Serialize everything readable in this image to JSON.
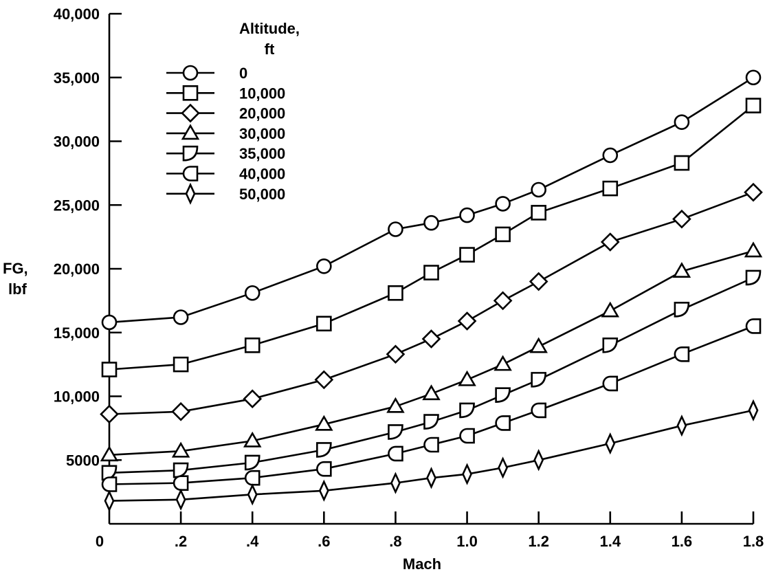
{
  "chart_data": {
    "type": "line",
    "xlabel": "Mach",
    "ylabel_lines": [
      "FG,",
      "lbf"
    ],
    "xlim": [
      0,
      1.8
    ],
    "ylim": [
      0,
      40000
    ],
    "x_ticks": [
      {
        "value": 0,
        "label": "0"
      },
      {
        "value": 0.2,
        "label": ".2"
      },
      {
        "value": 0.4,
        "label": ".4"
      },
      {
        "value": 0.6,
        "label": ".6"
      },
      {
        "value": 0.8,
        "label": ".8"
      },
      {
        "value": 1.0,
        "label": "1.0"
      },
      {
        "value": 1.2,
        "label": "1.2"
      },
      {
        "value": 1.4,
        "label": "1.4"
      },
      {
        "value": 1.6,
        "label": "1.6"
      },
      {
        "value": 1.8,
        "label": "1.8"
      }
    ],
    "y_ticks": [
      {
        "value": 5000,
        "label": "5000"
      },
      {
        "value": 10000,
        "label": "10,000"
      },
      {
        "value": 15000,
        "label": "15,000"
      },
      {
        "value": 20000,
        "label": "20,000"
      },
      {
        "value": 25000,
        "label": "25,000"
      },
      {
        "value": 30000,
        "label": "30,000"
      },
      {
        "value": 35000,
        "label": "35,000"
      },
      {
        "value": 40000,
        "label": "40,000"
      }
    ],
    "legend_title_lines": [
      "Altitude,",
      "ft"
    ],
    "legend_position": "top-left",
    "grid": false,
    "x": [
      0,
      0.2,
      0.4,
      0.6,
      0.8,
      0.9,
      1.0,
      1.1,
      1.2,
      1.4,
      1.6,
      1.8
    ],
    "series": [
      {
        "name": "0",
        "marker": "circle",
        "values": [
          15800,
          16200,
          18100,
          20200,
          23100,
          23600,
          24200,
          25100,
          26200,
          28900,
          31500,
          35000
        ]
      },
      {
        "name": "10,000",
        "marker": "square",
        "values": [
          12100,
          12500,
          14000,
          15700,
          18100,
          19700,
          21100,
          22700,
          24400,
          26300,
          28300,
          32800
        ]
      },
      {
        "name": "20,000",
        "marker": "diamond",
        "values": [
          8600,
          8800,
          9800,
          11300,
          13300,
          14500,
          15900,
          17500,
          19000,
          22100,
          23900,
          26000
        ]
      },
      {
        "name": "30,000",
        "marker": "triangle",
        "values": [
          5400,
          5700,
          6500,
          7800,
          9200,
          10200,
          11300,
          12500,
          13900,
          16700,
          19800,
          21400
        ]
      },
      {
        "name": "35,000",
        "marker": "flagged-square",
        "values": [
          4000,
          4200,
          4800,
          5800,
          7200,
          8000,
          8900,
          10100,
          11300,
          14000,
          16800,
          19300
        ]
      },
      {
        "name": "40,000",
        "marker": "half-circle",
        "values": [
          3100,
          3200,
          3600,
          4300,
          5500,
          6200,
          6900,
          7900,
          8900,
          11000,
          13300,
          15500
        ]
      },
      {
        "name": "50,000",
        "marker": "thin-diamond",
        "values": [
          1800,
          1900,
          2300,
          2600,
          3200,
          3600,
          3900,
          4400,
          5000,
          6300,
          7700,
          8900
        ]
      }
    ]
  }
}
